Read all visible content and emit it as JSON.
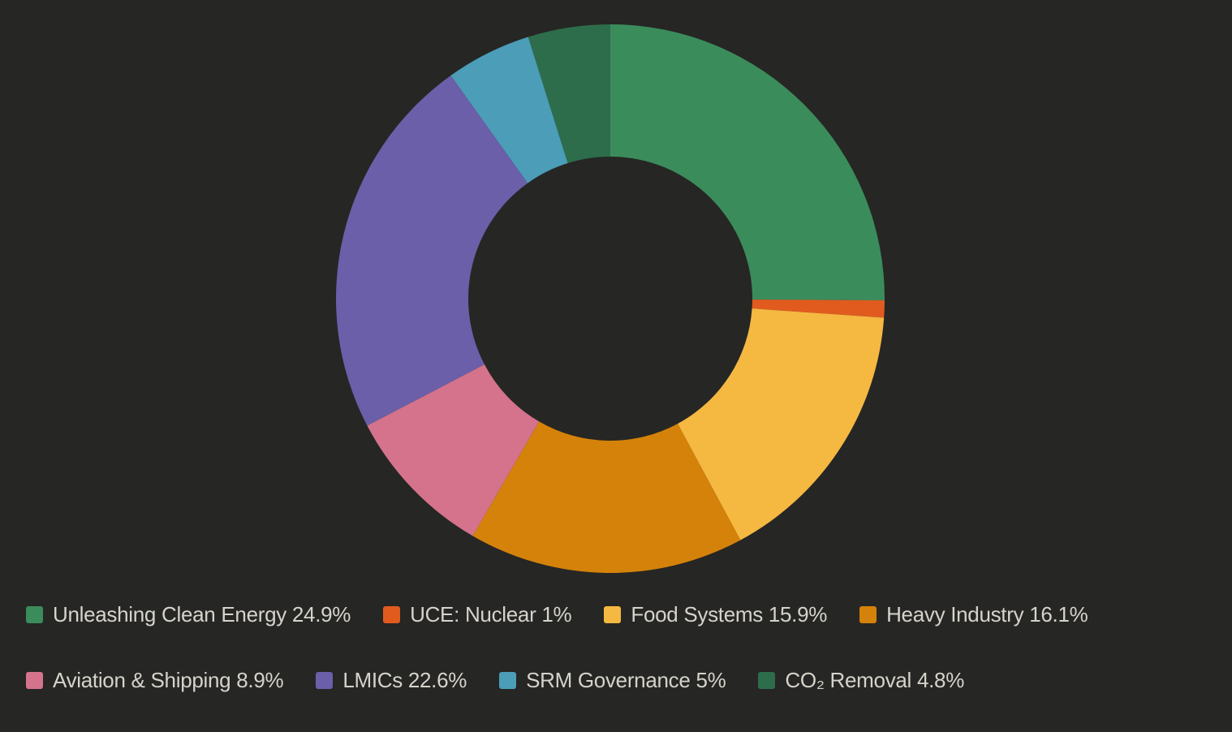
{
  "chart_data": {
    "type": "pie",
    "variant": "donut",
    "start_angle": "top, clockwise",
    "legend_placement": "bottom",
    "slices": [
      {
        "label": "Unleashing Clean Energy",
        "value": 24.9,
        "display": "Unleashing Clean Energy 24.9%",
        "color": "#3b8c5b"
      },
      {
        "label": "UCE: Nuclear",
        "value": 1,
        "display": "UCE: Nuclear 1%",
        "color": "#e15b1f"
      },
      {
        "label": "Food Systems",
        "value": 15.9,
        "display": "Food Systems 15.9%",
        "color": "#f5b841"
      },
      {
        "label": "Heavy Industry",
        "value": 16.1,
        "display": "Heavy Industry 16.1%",
        "color": "#d4820a"
      },
      {
        "label": "Aviation & Shipping",
        "value": 8.9,
        "display": "Aviation & Shipping 8.9%",
        "color": "#d4738b"
      },
      {
        "label": "LMICs",
        "value": 22.6,
        "display": "LMICs 22.6%",
        "color": "#6b5fa9"
      },
      {
        "label": "SRM Governance",
        "value": 5,
        "display": "SRM Governance 5%",
        "color": "#4b9db8"
      },
      {
        "label": "CO₂ Removal",
        "value": 4.8,
        "display": "CO₂ Removal 4.8%",
        "color": "#2d6d4b"
      }
    ]
  }
}
